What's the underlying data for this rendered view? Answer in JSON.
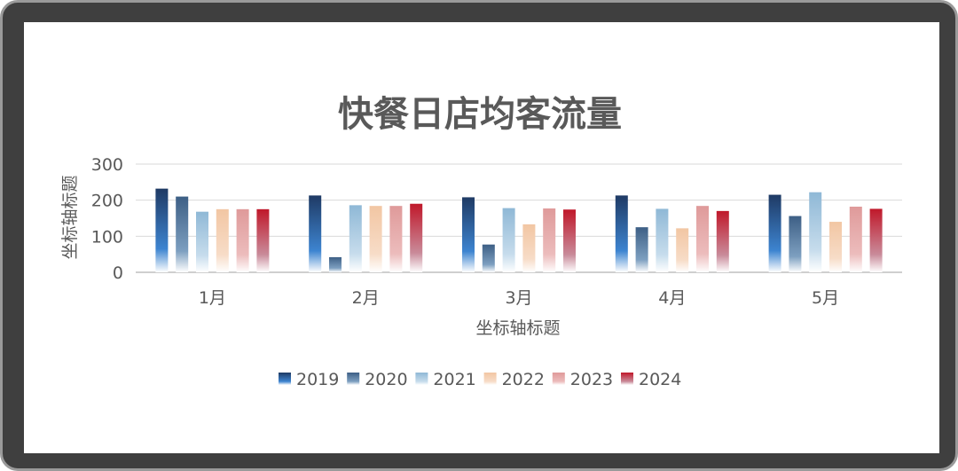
{
  "chart_data": {
    "type": "bar",
    "title": "快餐日店均客流量",
    "xlabel": "坐标轴标题",
    "ylabel": "坐标轴标题",
    "categories": [
      "1月",
      "2月",
      "3月",
      "4月",
      "5月"
    ],
    "ylim": [
      0,
      300
    ],
    "yticks": [
      "0",
      "100",
      "200",
      "300"
    ],
    "grid": true,
    "legend_position": "bottom",
    "series": [
      {
        "name": "2019",
        "values": [
          232,
          213,
          208,
          213,
          215
        ],
        "color_top": "#1f3a64",
        "color_mid": "#3d84d0"
      },
      {
        "name": "2020",
        "values": [
          210,
          42,
          77,
          125,
          156
        ],
        "color_top": "#3d5f85",
        "color_mid": "#7d9fc0"
      },
      {
        "name": "2021",
        "values": [
          168,
          186,
          178,
          176,
          222
        ],
        "color_top": "#8fb8d6",
        "color_mid": "#c6dcec"
      },
      {
        "name": "2022",
        "values": [
          175,
          184,
          133,
          122,
          140
        ],
        "color_top": "#f2c6a3",
        "color_mid": "#f7dcc7"
      },
      {
        "name": "2023",
        "values": [
          175,
          184,
          177,
          184,
          182
        ],
        "color_top": "#df9a9a",
        "color_mid": "#ecbcbc"
      },
      {
        "name": "2024",
        "values": [
          175,
          190,
          174,
          170,
          176
        ],
        "color_top": "#c0182a",
        "color_mid": "#c98b9a"
      }
    ]
  }
}
